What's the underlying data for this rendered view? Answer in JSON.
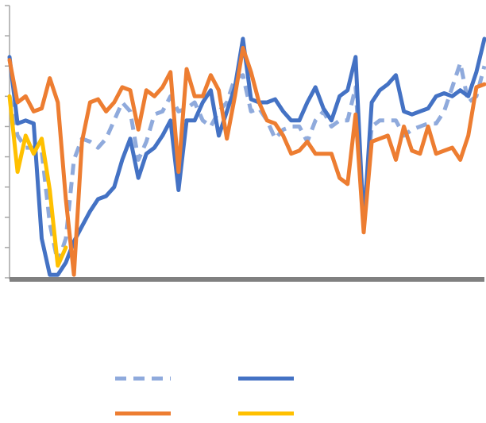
{
  "chart_data": {
    "type": "line",
    "categories": [
      null,
      null,
      null,
      null,
      null,
      null,
      null,
      null,
      null,
      null,
      null,
      null,
      null,
      null,
      null,
      null,
      null,
      null,
      null,
      null,
      null,
      null,
      null,
      null,
      null,
      null,
      null,
      null,
      null,
      null,
      null,
      null,
      null,
      null,
      null,
      null,
      null,
      null,
      null,
      null,
      null,
      null,
      null,
      null,
      null,
      null,
      null,
      null,
      null,
      null,
      null,
      null,
      null,
      null,
      null,
      null,
      null,
      null,
      null,
      null
    ],
    "ylim": [
      0,
      9
    ],
    "yticks": [
      0,
      1,
      2,
      3,
      4,
      5,
      6,
      7,
      8,
      9
    ],
    "series": [
      {
        "color": "#8faadc",
        "dash": true,
        "values": [
          6.0,
          4.7,
          4.3,
          4.3,
          4.2,
          1.8,
          0.5,
          1.3,
          3.9,
          4.6,
          4.5,
          4.3,
          4.6,
          5.2,
          5.8,
          5.5,
          3.9,
          4.5,
          5.4,
          5.5,
          6.0,
          5.5,
          5.6,
          5.8,
          5.2,
          5.0,
          5.5,
          5.8,
          6.6,
          6.7,
          5.5,
          5.6,
          5.2,
          4.6,
          4.9,
          5.0,
          5.0,
          4.5,
          5.2,
          5.5,
          5.0,
          5.2,
          5.2,
          6.3,
          2.1,
          5.0,
          5.2,
          5.2,
          5.2,
          4.7,
          4.9,
          5.0,
          5.1,
          5.1,
          5.5,
          6.3,
          7.1,
          5.8,
          6.0,
          7.0
        ]
      },
      {
        "color": "#4472c4",
        "dash": false,
        "values": [
          7.3,
          5.1,
          5.2,
          5.1,
          1.3,
          0.1,
          0.1,
          0.5,
          1.2,
          1.7,
          2.2,
          2.6,
          2.7,
          3.0,
          3.9,
          4.6,
          3.3,
          4.1,
          4.3,
          4.7,
          5.2,
          2.9,
          5.2,
          5.2,
          5.8,
          6.2,
          4.7,
          5.5,
          6.3,
          7.9,
          5.9,
          5.8,
          5.8,
          5.9,
          5.5,
          5.2,
          5.2,
          5.8,
          6.3,
          5.6,
          5.2,
          6.0,
          6.2,
          7.3,
          1.7,
          5.8,
          6.2,
          6.4,
          6.7,
          5.5,
          5.4,
          5.5,
          5.6,
          6.0,
          6.1,
          6.0,
          6.2,
          6.0,
          6.8,
          7.9
        ]
      },
      {
        "color": "#ed7d31",
        "dash": false,
        "values": [
          7.2,
          5.8,
          6.0,
          5.5,
          5.6,
          6.6,
          5.8,
          2.6,
          0.1,
          4.5,
          5.8,
          5.9,
          5.5,
          5.8,
          6.3,
          6.2,
          4.9,
          6.2,
          6.0,
          6.3,
          6.8,
          3.5,
          6.9,
          6.0,
          6.0,
          6.7,
          6.2,
          4.6,
          6.0,
          7.6,
          6.8,
          5.8,
          5.2,
          5.1,
          4.7,
          4.1,
          4.2,
          4.5,
          4.1,
          4.1,
          4.1,
          3.3,
          3.1,
          5.4,
          1.5,
          4.5,
          4.6,
          4.7,
          3.9,
          5.0,
          4.2,
          4.1,
          5.0,
          4.1,
          4.2,
          4.3,
          3.9,
          4.7,
          6.3,
          6.4
        ]
      },
      {
        "color": "#ffc000",
        "dash": false,
        "values": [
          6.0,
          3.5,
          4.7,
          4.1,
          4.6,
          2.9,
          0.4,
          1.0,
          null,
          null,
          null,
          null,
          null,
          null,
          null,
          null,
          null,
          null,
          null,
          null,
          null,
          null,
          null,
          null,
          null,
          null,
          null,
          null,
          null,
          null,
          null,
          null,
          null,
          null,
          null,
          null,
          null,
          null,
          null,
          null,
          null,
          null,
          null,
          null,
          null,
          null,
          null,
          null,
          null,
          null,
          null,
          null,
          null,
          null,
          null,
          null,
          null,
          null,
          null,
          null
        ]
      }
    ]
  }
}
